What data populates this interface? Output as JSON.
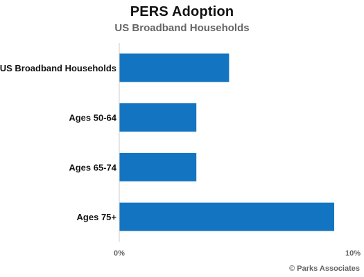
{
  "chart_data": {
    "type": "bar",
    "orientation": "horizontal",
    "title": "PERS Adoption",
    "subtitle": "US Broadband Households",
    "categories": [
      "All US Broadband Households",
      "Ages 50-64",
      "Ages 65-74",
      "Ages 75+"
    ],
    "values": [
      4.7,
      3.3,
      3.3,
      9.2
    ],
    "xlim": [
      0,
      10
    ],
    "x_ticks": [
      "0%",
      "10%"
    ],
    "bar_color": "#1375c1",
    "grid": false,
    "legend": "none"
  },
  "credit": "© Parks Associates"
}
